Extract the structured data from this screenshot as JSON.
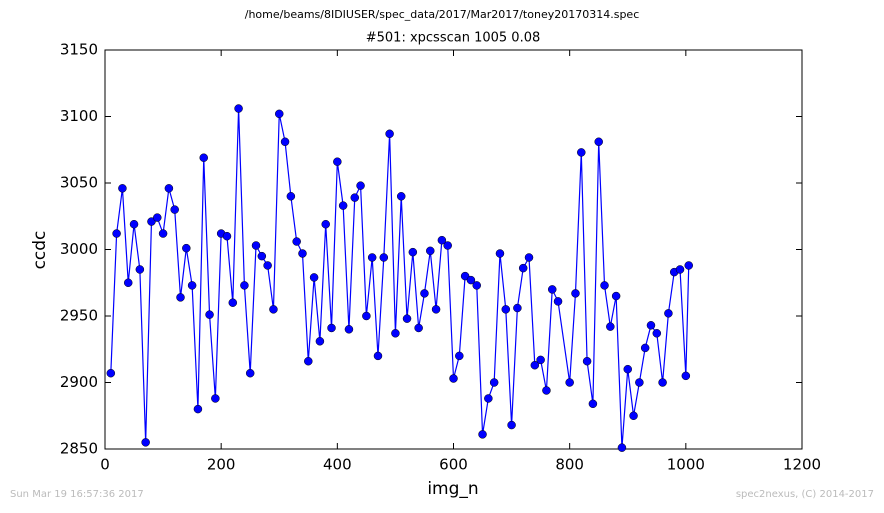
{
  "chart_data": {
    "type": "line",
    "suptitle": "/home/beams/8IDIUSER/spec_data/2017/Mar2017/toney20170314.spec",
    "title": "#501: xpcsscan 1005 0.08",
    "xlabel": "img_n",
    "ylabel": "ccdc",
    "timestamp": "Sun Mar 19 16:57:36 2017",
    "credit": "spec2nexus, (C) 2014-2017",
    "xlim": [
      0,
      1200
    ],
    "xticks": [
      0,
      200,
      400,
      600,
      800,
      1000,
      1200
    ],
    "ylim": [
      2850,
      3150
    ],
    "yticks": [
      2850,
      2900,
      2950,
      3000,
      3050,
      3100,
      3150
    ],
    "grid": false,
    "series": [
      {
        "color": "#0000ff",
        "x": [
          10,
          20,
          30,
          40,
          50,
          60,
          70,
          80,
          90,
          100,
          110,
          120,
          130,
          140,
          150,
          160,
          170,
          180,
          190,
          200,
          210,
          220,
          230,
          240,
          250,
          260,
          270,
          280,
          290,
          300,
          310,
          320,
          330,
          340,
          350,
          360,
          370,
          380,
          390,
          400,
          410,
          420,
          430,
          440,
          450,
          460,
          470,
          480,
          490,
          500,
          510,
          520,
          530,
          540,
          550,
          560,
          570,
          580,
          590,
          600,
          610,
          620,
          630,
          640,
          650,
          660,
          670,
          680,
          690,
          700,
          710,
          720,
          730,
          740,
          750,
          760,
          770,
          780,
          800,
          810,
          820,
          830,
          840,
          850,
          860,
          870,
          880,
          890,
          900,
          910,
          920,
          930,
          940,
          950,
          960,
          970,
          980,
          990,
          1000,
          1005
        ],
        "values": [
          2907,
          3012,
          3046,
          2975,
          3019,
          2985,
          2855,
          3021,
          3024,
          3012,
          3046,
          3030,
          2964,
          3001,
          2973,
          2880,
          3069,
          2951,
          2888,
          3012,
          3010,
          2960,
          3106,
          2973,
          2907,
          3003,
          2995,
          2988,
          2955,
          3102,
          3081,
          3040,
          3006,
          2997,
          2916,
          2979,
          2931,
          3019,
          2941,
          3066,
          3033,
          2940,
          3039,
          3048,
          2950,
          2994,
          2920,
          2994,
          3087,
          2937,
          3040,
          2948,
          2998,
          2941,
          2967,
          2999,
          2955,
          3007,
          3003,
          2903,
          2920,
          2980,
          2977,
          2973,
          2861,
          2888,
          2900,
          2997,
          2955,
          2868,
          2956,
          2986,
          2994,
          2913,
          2917,
          2894,
          2970,
          2961,
          2900,
          2967,
          3073,
          2916,
          2884,
          3081,
          2973,
          2942,
          2965,
          2851,
          2910,
          2875,
          2900,
          2926,
          2943,
          2937,
          2900,
          2952,
          2983,
          2985,
          2905,
          2988
        ]
      }
    ]
  }
}
